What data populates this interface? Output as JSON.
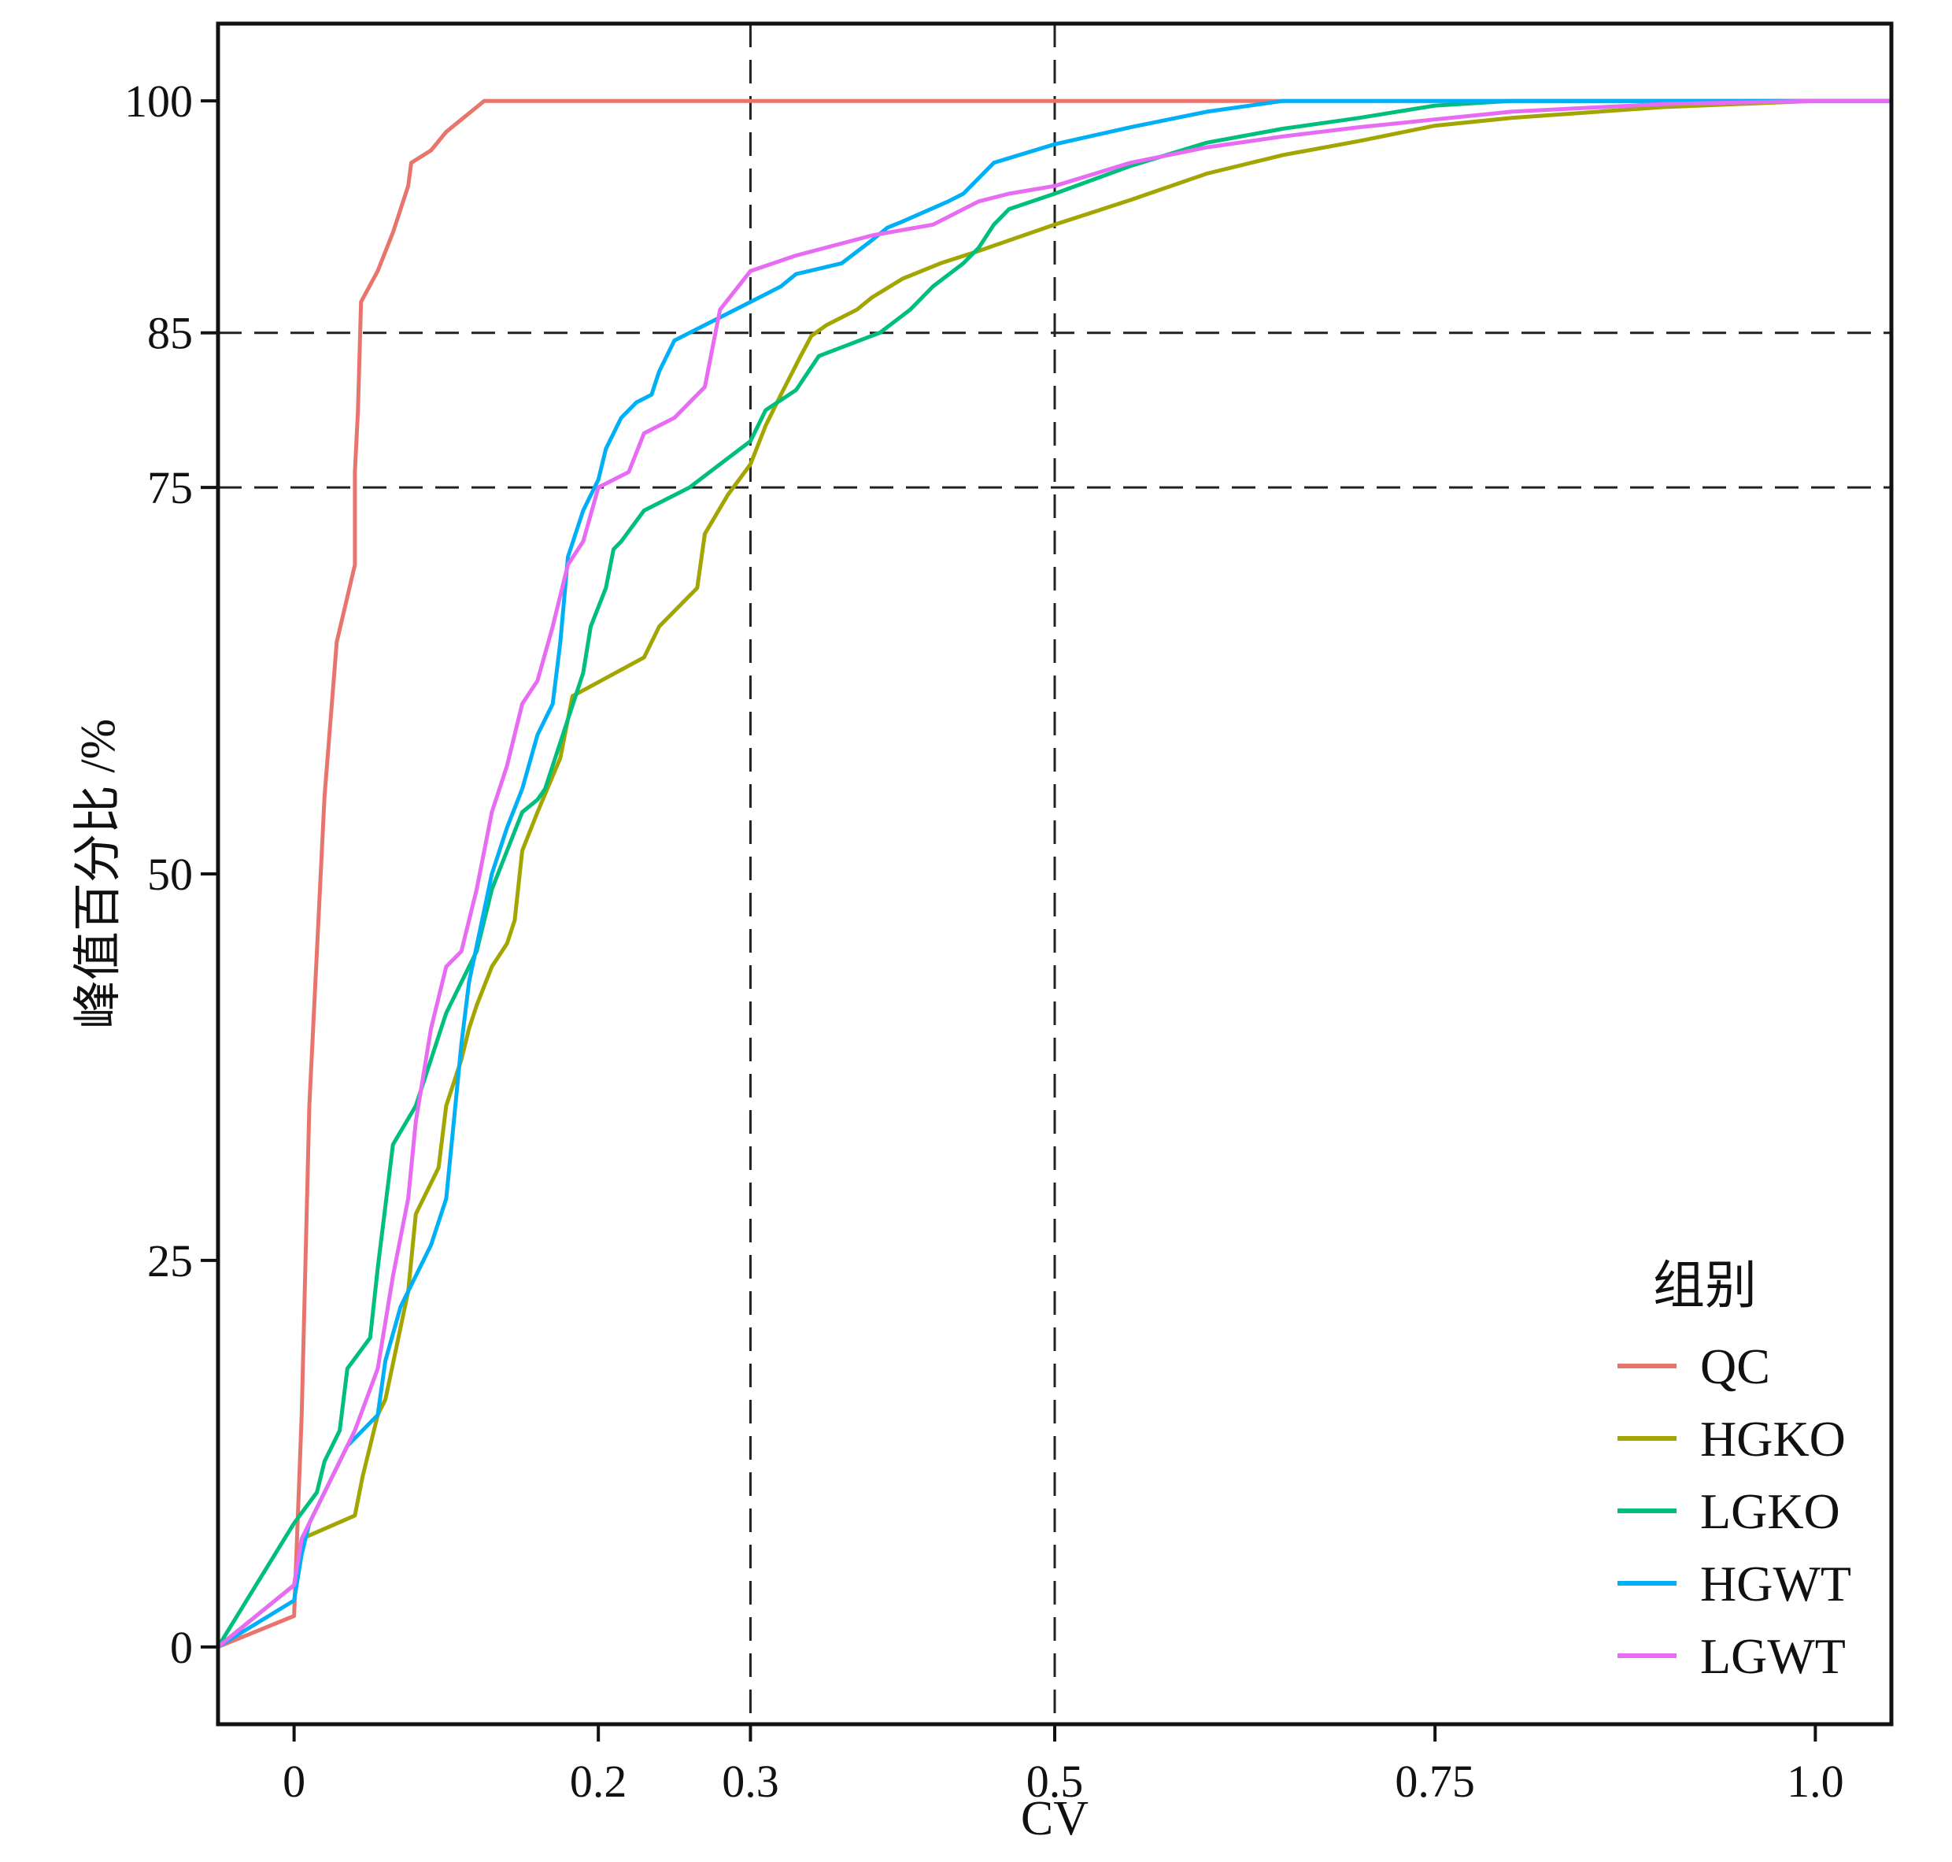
{
  "chart_data": {
    "type": "line",
    "xlabel": "CV",
    "ylabel": "峰值百分比 /%",
    "xlim": [
      -0.05,
      1.05
    ],
    "ylim": [
      -5,
      105
    ],
    "x_ticks": [
      {
        "value": 0,
        "label": "0"
      },
      {
        "value": 0.2,
        "label": "0.2"
      },
      {
        "value": 0.3,
        "label": "0.3"
      },
      {
        "value": 0.5,
        "label": "0.5"
      },
      {
        "value": 0.75,
        "label": "0.75"
      },
      {
        "value": 1.0,
        "label": "1.0"
      }
    ],
    "y_ticks": [
      {
        "value": 0,
        "label": "0"
      },
      {
        "value": 25,
        "label": "25"
      },
      {
        "value": 50,
        "label": "50"
      },
      {
        "value": 75,
        "label": "75"
      },
      {
        "value": 85,
        "label": "85"
      },
      {
        "value": 100,
        "label": "100"
      }
    ],
    "reference_lines": {
      "x": [
        0.3,
        0.5
      ],
      "y": [
        75,
        85
      ],
      "style": "dashed"
    },
    "grid": false,
    "legend": {
      "title": "组别",
      "position": "bottom-right"
    },
    "series": [
      {
        "name": "QC",
        "color": "#E8756D",
        "points": [
          [
            -0.05,
            0
          ],
          [
            0,
            2
          ],
          [
            0.005,
            15
          ],
          [
            0.01,
            35
          ],
          [
            0.02,
            55
          ],
          [
            0.028,
            65
          ],
          [
            0.04,
            70
          ],
          [
            0.04,
            76
          ],
          [
            0.042,
            80
          ],
          [
            0.044,
            87
          ],
          [
            0.055,
            89
          ],
          [
            0.065,
            91.5
          ],
          [
            0.075,
            94.5
          ],
          [
            0.077,
            96
          ],
          [
            0.09,
            96.8
          ],
          [
            0.1,
            98
          ],
          [
            0.125,
            100
          ],
          [
            1.05,
            100
          ]
        ]
      },
      {
        "name": "HGKO",
        "color": "#A3A500",
        "points": [
          [
            -0.05,
            0
          ],
          [
            0,
            4
          ],
          [
            0.005,
            7
          ],
          [
            0.04,
            8.5
          ],
          [
            0.045,
            11
          ],
          [
            0.055,
            15
          ],
          [
            0.06,
            16
          ],
          [
            0.075,
            23
          ],
          [
            0.08,
            28
          ],
          [
            0.095,
            31
          ],
          [
            0.1,
            35
          ],
          [
            0.11,
            38
          ],
          [
            0.115,
            40
          ],
          [
            0.12,
            41.5
          ],
          [
            0.13,
            44
          ],
          [
            0.14,
            45.5
          ],
          [
            0.145,
            47
          ],
          [
            0.15,
            51.5
          ],
          [
            0.16,
            54
          ],
          [
            0.175,
            57.5
          ],
          [
            0.183,
            61.5
          ],
          [
            0.23,
            64
          ],
          [
            0.24,
            66
          ],
          [
            0.265,
            68.5
          ],
          [
            0.27,
            72
          ],
          [
            0.285,
            74.5
          ],
          [
            0.3,
            76.5
          ],
          [
            0.31,
            79
          ],
          [
            0.32,
            81
          ],
          [
            0.333,
            83.5
          ],
          [
            0.34,
            84.8
          ],
          [
            0.35,
            85.5
          ],
          [
            0.37,
            86.5
          ],
          [
            0.38,
            87.3
          ],
          [
            0.4,
            88.5
          ],
          [
            0.425,
            89.5
          ],
          [
            0.45,
            90.3
          ],
          [
            0.5,
            92
          ],
          [
            0.55,
            93.6
          ],
          [
            0.6,
            95.3
          ],
          [
            0.65,
            96.5
          ],
          [
            0.7,
            97.4
          ],
          [
            0.75,
            98.4
          ],
          [
            0.8,
            98.9
          ],
          [
            0.9,
            99.6
          ],
          [
            1.0,
            100
          ],
          [
            1.05,
            100
          ]
        ]
      },
      {
        "name": "LGKO",
        "color": "#00BF7D",
        "points": [
          [
            -0.05,
            0
          ],
          [
            0,
            8
          ],
          [
            0.015,
            10
          ],
          [
            0.02,
            12
          ],
          [
            0.03,
            14
          ],
          [
            0.035,
            18
          ],
          [
            0.05,
            20
          ],
          [
            0.055,
            24.5
          ],
          [
            0.06,
            28.5
          ],
          [
            0.065,
            32.5
          ],
          [
            0.08,
            35
          ],
          [
            0.09,
            38
          ],
          [
            0.1,
            41
          ],
          [
            0.11,
            43
          ],
          [
            0.12,
            45
          ],
          [
            0.13,
            49
          ],
          [
            0.14,
            51.5
          ],
          [
            0.15,
            54
          ],
          [
            0.16,
            54.8
          ],
          [
            0.165,
            55.5
          ],
          [
            0.19,
            63
          ],
          [
            0.195,
            66
          ],
          [
            0.205,
            68.5
          ],
          [
            0.21,
            71
          ],
          [
            0.215,
            71.5
          ],
          [
            0.23,
            73.5
          ],
          [
            0.26,
            75
          ],
          [
            0.28,
            76.5
          ],
          [
            0.3,
            78
          ],
          [
            0.31,
            80
          ],
          [
            0.33,
            81.3
          ],
          [
            0.345,
            83.5
          ],
          [
            0.385,
            85
          ],
          [
            0.405,
            86.5
          ],
          [
            0.42,
            88
          ],
          [
            0.44,
            89.5
          ],
          [
            0.45,
            90.5
          ],
          [
            0.46,
            92
          ],
          [
            0.47,
            93
          ],
          [
            0.5,
            94
          ],
          [
            0.55,
            95.8
          ],
          [
            0.6,
            97.3
          ],
          [
            0.65,
            98.2
          ],
          [
            0.7,
            98.9
          ],
          [
            0.75,
            99.7
          ],
          [
            0.8,
            100
          ],
          [
            1.05,
            100
          ]
        ]
      },
      {
        "name": "HGWT",
        "color": "#00B0F6",
        "points": [
          [
            -0.05,
            0
          ],
          [
            0,
            3
          ],
          [
            0.005,
            6
          ],
          [
            0.01,
            8
          ],
          [
            0.02,
            10
          ],
          [
            0.035,
            13
          ],
          [
            0.055,
            15
          ],
          [
            0.06,
            18.5
          ],
          [
            0.07,
            22
          ],
          [
            0.09,
            26
          ],
          [
            0.1,
            29
          ],
          [
            0.105,
            34
          ],
          [
            0.11,
            39
          ],
          [
            0.115,
            43
          ],
          [
            0.13,
            50
          ],
          [
            0.14,
            53
          ],
          [
            0.15,
            55.5
          ],
          [
            0.16,
            59
          ],
          [
            0.17,
            61
          ],
          [
            0.175,
            65
          ],
          [
            0.18,
            70.5
          ],
          [
            0.19,
            73.5
          ],
          [
            0.2,
            75.5
          ],
          [
            0.205,
            77.5
          ],
          [
            0.215,
            79.5
          ],
          [
            0.225,
            80.5
          ],
          [
            0.235,
            81
          ],
          [
            0.24,
            82.5
          ],
          [
            0.25,
            84.5
          ],
          [
            0.26,
            85
          ],
          [
            0.28,
            86
          ],
          [
            0.3,
            87
          ],
          [
            0.32,
            88
          ],
          [
            0.33,
            88.8
          ],
          [
            0.36,
            89.5
          ],
          [
            0.38,
            91
          ],
          [
            0.39,
            91.8
          ],
          [
            0.4,
            92.2
          ],
          [
            0.43,
            93.5
          ],
          [
            0.44,
            94
          ],
          [
            0.46,
            96
          ],
          [
            0.5,
            97.2
          ],
          [
            0.55,
            98.3
          ],
          [
            0.6,
            99.3
          ],
          [
            0.65,
            100
          ],
          [
            1.05,
            100
          ]
        ]
      },
      {
        "name": "LGWT",
        "color": "#E76BF3",
        "points": [
          [
            -0.05,
            0
          ],
          [
            0,
            4
          ],
          [
            0.005,
            7
          ],
          [
            0.02,
            10
          ],
          [
            0.04,
            14
          ],
          [
            0.055,
            18
          ],
          [
            0.065,
            24
          ],
          [
            0.075,
            29
          ],
          [
            0.08,
            34
          ],
          [
            0.09,
            40
          ],
          [
            0.1,
            44
          ],
          [
            0.11,
            45
          ],
          [
            0.115,
            47
          ],
          [
            0.12,
            49
          ],
          [
            0.13,
            54
          ],
          [
            0.14,
            57
          ],
          [
            0.15,
            61
          ],
          [
            0.16,
            62.5
          ],
          [
            0.17,
            66
          ],
          [
            0.18,
            70
          ],
          [
            0.19,
            71.5
          ],
          [
            0.2,
            75
          ],
          [
            0.22,
            76
          ],
          [
            0.23,
            78.5
          ],
          [
            0.25,
            79.5
          ],
          [
            0.27,
            81.5
          ],
          [
            0.275,
            84
          ],
          [
            0.28,
            86.5
          ],
          [
            0.3,
            89
          ],
          [
            0.33,
            90
          ],
          [
            0.38,
            91.3
          ],
          [
            0.42,
            92
          ],
          [
            0.45,
            93.5
          ],
          [
            0.47,
            94
          ],
          [
            0.5,
            94.5
          ],
          [
            0.55,
            96
          ],
          [
            0.6,
            97
          ],
          [
            0.65,
            97.7
          ],
          [
            0.7,
            98.3
          ],
          [
            0.75,
            98.8
          ],
          [
            0.8,
            99.3
          ],
          [
            0.9,
            99.8
          ],
          [
            1.0,
            100
          ],
          [
            1.05,
            100
          ]
        ]
      }
    ]
  }
}
